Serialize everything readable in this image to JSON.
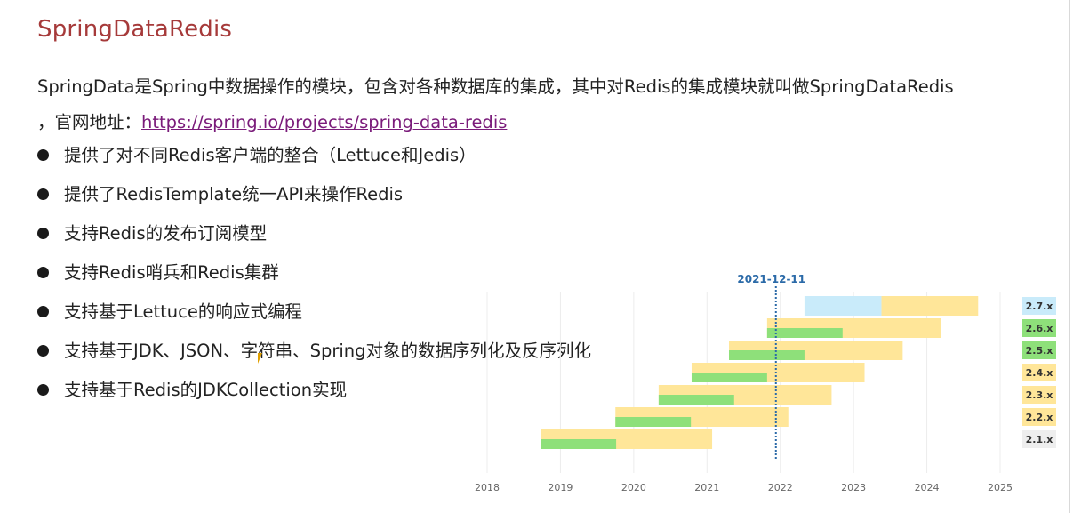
{
  "slide": {
    "title": "SpringDataRedis",
    "description_line1": "SpringData是Spring中数据操作的模块，包含对各种数据库的集成，其中对Redis的集成模块就叫做SpringDataRedis",
    "description_line2_prefix": "，官网地址：",
    "link_text": "https://spring.io/projects/spring-data-redis",
    "bullets": [
      "提供了对不同Redis客户端的整合（Lettuce和Jedis）",
      "提供了RedisTemplate统一API来操作Redis",
      "支持Redis的发布订阅模型",
      "支持Redis哨兵和Redis集群",
      "支持基于Lettuce的响应式编程",
      "支持基于JDK、JSON、字符串、Spring对象的数据序列化及反序列化",
      "支持基于Redis的JDKCollection实现"
    ]
  },
  "chart_data": {
    "type": "bar",
    "title": "",
    "marker": {
      "label": "2021-12-11",
      "date": 2021.94
    },
    "xlim": [
      2018,
      2025
    ],
    "x_ticks": [
      "2018",
      "2019",
      "2020",
      "2021",
      "2022",
      "2023",
      "2024",
      "2025"
    ],
    "colors": {
      "oss": "#8ee07a",
      "commercial": "#ffe699",
      "future": "#c9ebfa",
      "marker": "#2b6aa8"
    },
    "series": [
      {
        "version": "2.7.x",
        "green": null,
        "yellow": [
          2023.38,
          2024.7
        ],
        "blue": [
          2022.33,
          2023.38
        ],
        "badge_color": "#c9ebfa"
      },
      {
        "version": "2.6.x",
        "green": [
          2021.82,
          2022.85
        ],
        "yellow": [
          2021.82,
          2024.19
        ],
        "blue": null,
        "badge_color": "#8ee07a"
      },
      {
        "version": "2.5.x",
        "green": [
          2021.3,
          2022.33
        ],
        "yellow": [
          2021.3,
          2023.67
        ],
        "blue": null,
        "badge_color": "#8ee07a"
      },
      {
        "version": "2.4.x",
        "green": [
          2020.79,
          2021.82
        ],
        "yellow": [
          2020.79,
          2023.15
        ],
        "blue": null,
        "badge_color": "#ffe699"
      },
      {
        "version": "2.3.x",
        "green": [
          2020.34,
          2021.37
        ],
        "yellow": [
          2020.34,
          2022.7
        ],
        "blue": null,
        "badge_color": "#ffe699"
      },
      {
        "version": "2.2.x",
        "green": [
          2019.75,
          2020.78
        ],
        "yellow": [
          2019.75,
          2022.11
        ],
        "blue": null,
        "badge_color": "#ffe699"
      },
      {
        "version": "2.1.x",
        "green": [
          2018.73,
          2019.76
        ],
        "yellow": [
          2018.73,
          2021.07
        ],
        "blue": null,
        "badge_color": "#eeeeee"
      }
    ]
  }
}
